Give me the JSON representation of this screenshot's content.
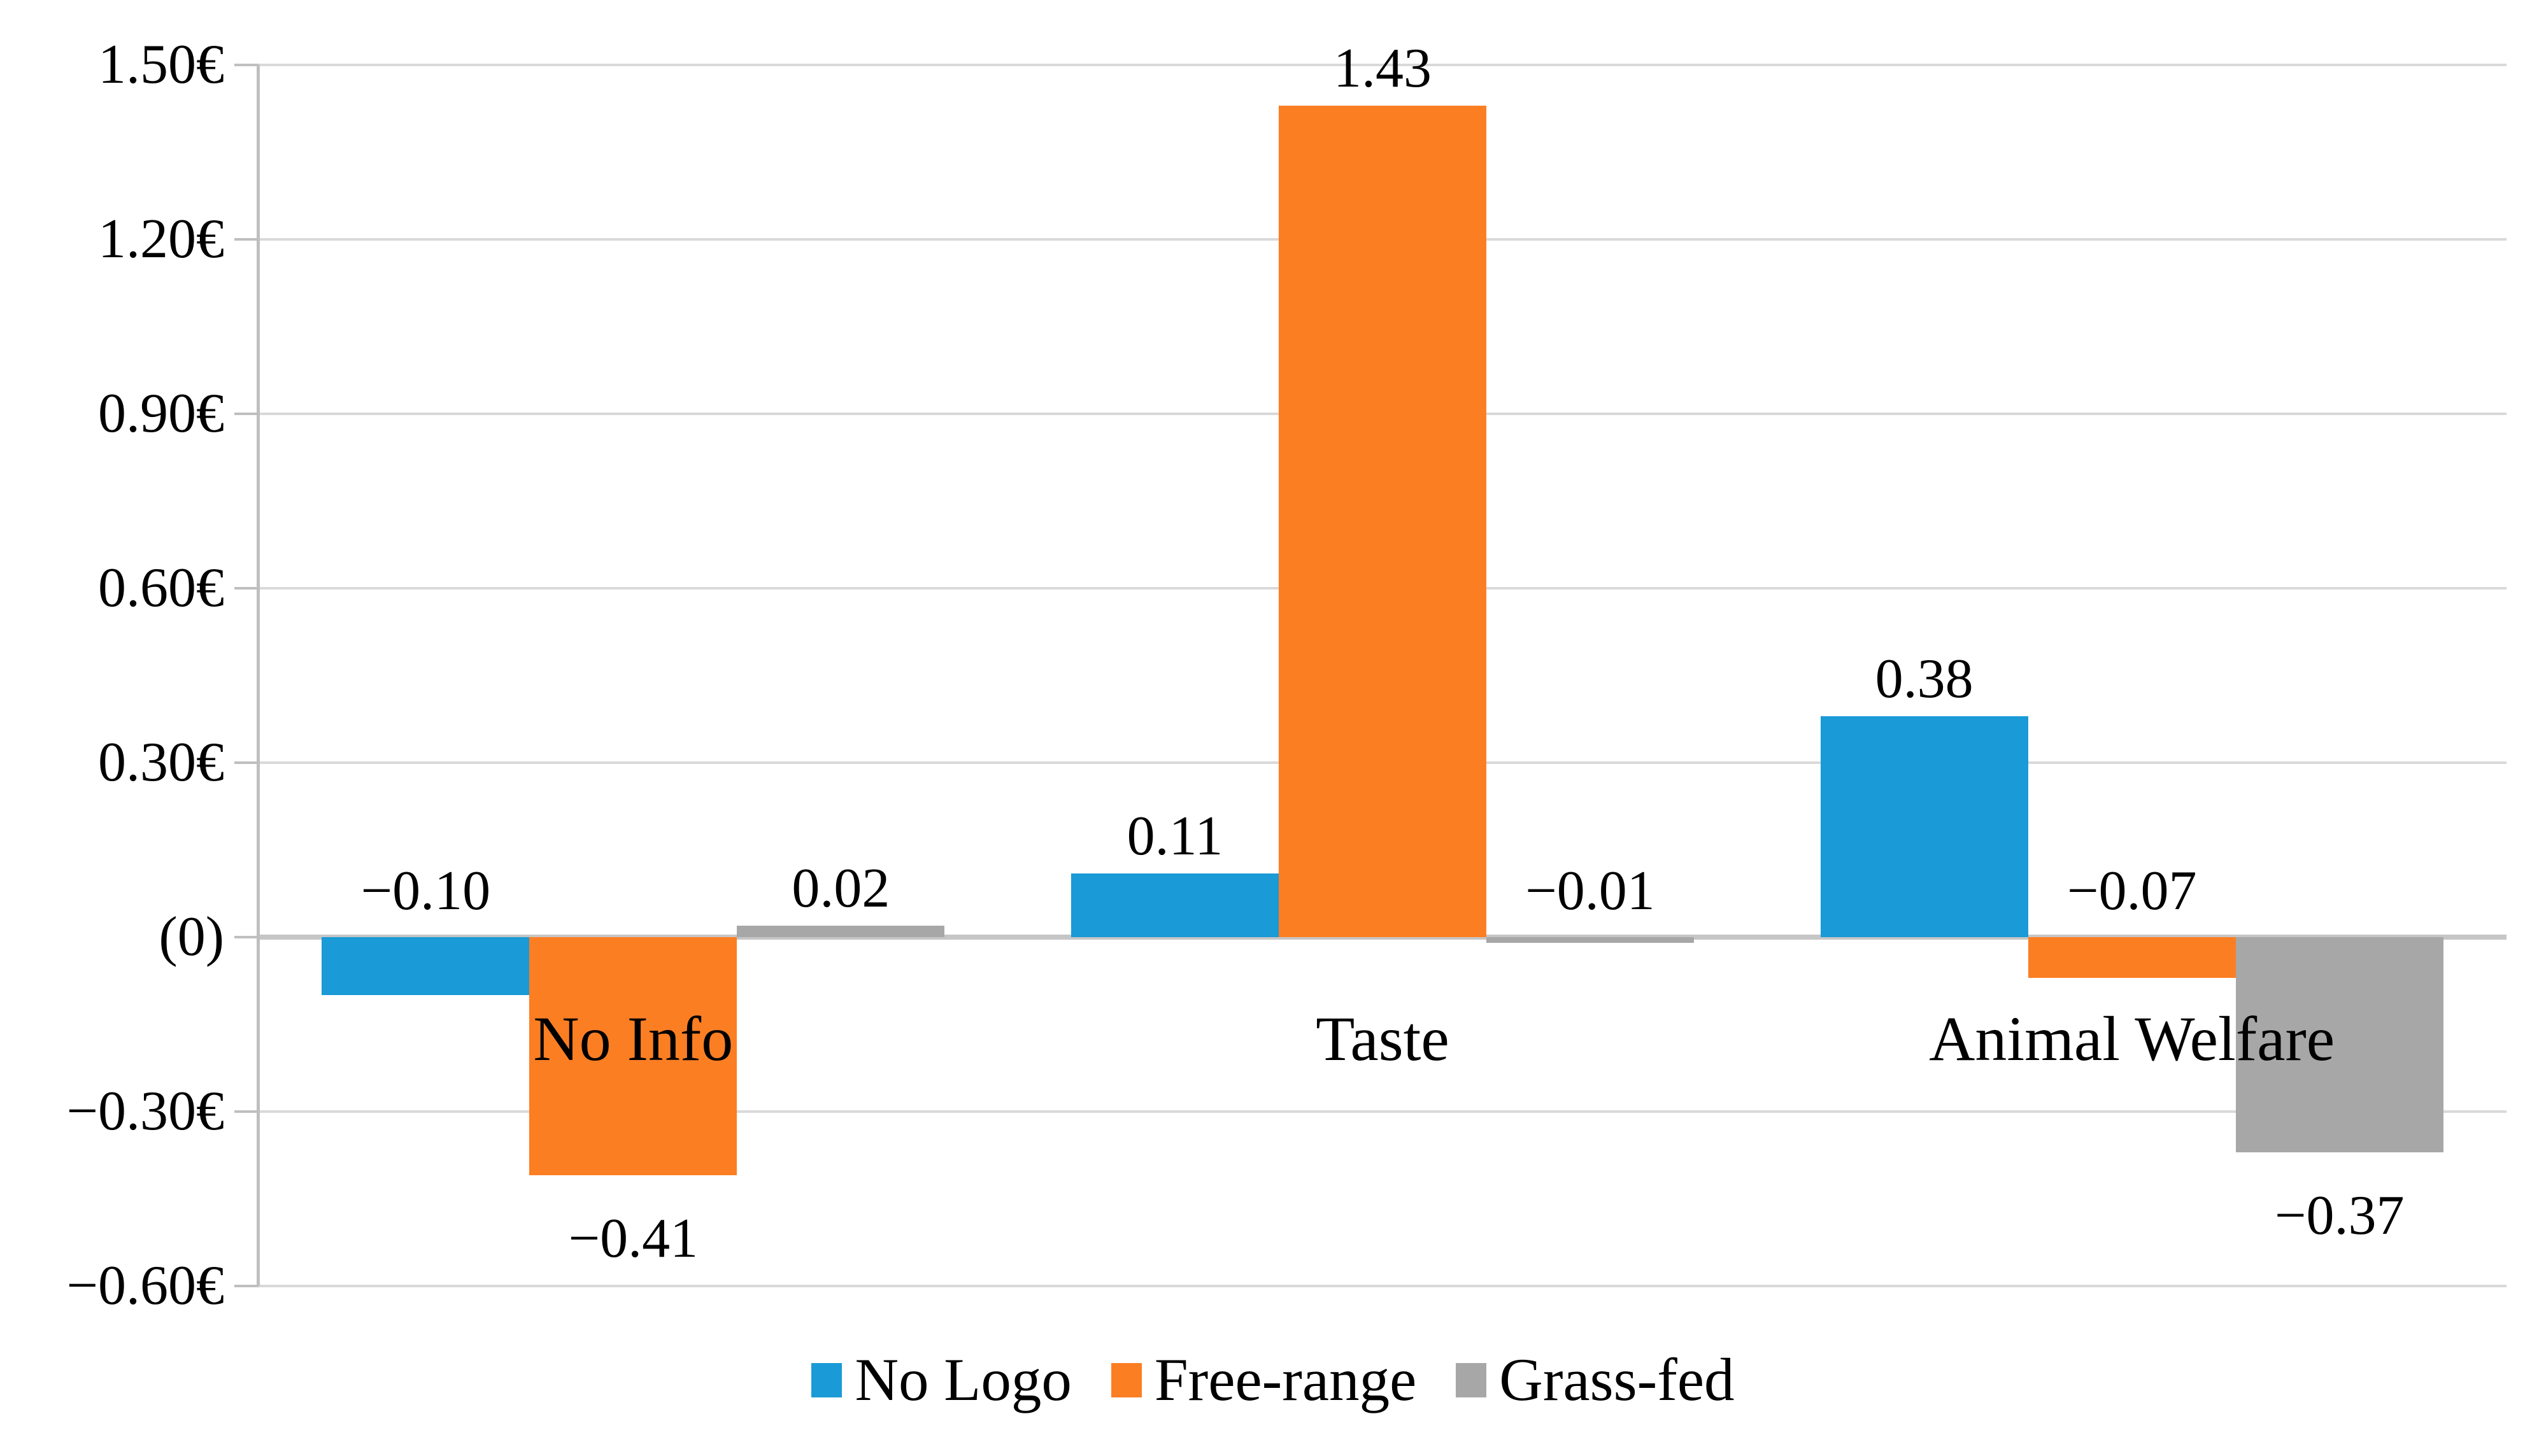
{
  "chart_data": {
    "type": "bar",
    "title": "",
    "categories": [
      "No Info",
      "Taste",
      "Animal Welfare"
    ],
    "series": [
      {
        "name": "No Logo",
        "color": "#1A9AD6",
        "values": [
          -0.1,
          0.11,
          0.38
        ],
        "labels": [
          "−0.10",
          "0.11",
          "0.38"
        ],
        "label_placement": [
          "above-axis",
          "above-bar",
          "above-bar"
        ]
      },
      {
        "name": "Free-range",
        "color": "#FC7E23",
        "values": [
          -0.41,
          1.43,
          -0.07
        ],
        "labels": [
          "−0.41",
          "1.43",
          "−0.07"
        ],
        "label_placement": [
          "below-bar",
          "above-bar",
          "above-axis"
        ]
      },
      {
        "name": "Grass-fed",
        "color": "#A7A7A7",
        "values": [
          0.02,
          -0.01,
          -0.37
        ],
        "labels": [
          "0.02",
          "−0.01",
          "−0.37"
        ],
        "label_placement": [
          "above-bar",
          "above-axis",
          "below-bar"
        ]
      }
    ],
    "y_axis": {
      "min": -0.6,
      "max": 1.5,
      "step": 0.3,
      "ticks": [
        {
          "value": 1.5,
          "label": "1.50€"
        },
        {
          "value": 1.2,
          "label": "1.20€"
        },
        {
          "value": 0.9,
          "label": "0.90€"
        },
        {
          "value": 0.6,
          "label": "0.60€"
        },
        {
          "value": 0.3,
          "label": "0.30€"
        },
        {
          "value": 0.0,
          "label": "(0)"
        },
        {
          "value": -0.3,
          "label": "−0.30€"
        },
        {
          "value": -0.6,
          "label": "−0.60€"
        }
      ]
    },
    "legend": {
      "position": "bottom",
      "entries": [
        "No Logo",
        "Free-range",
        "Grass-fed"
      ]
    },
    "grid": true,
    "colors": {
      "gridline": "#d9d9d9",
      "axis_line": "#bfbfbf",
      "label_text": "#000000"
    }
  }
}
